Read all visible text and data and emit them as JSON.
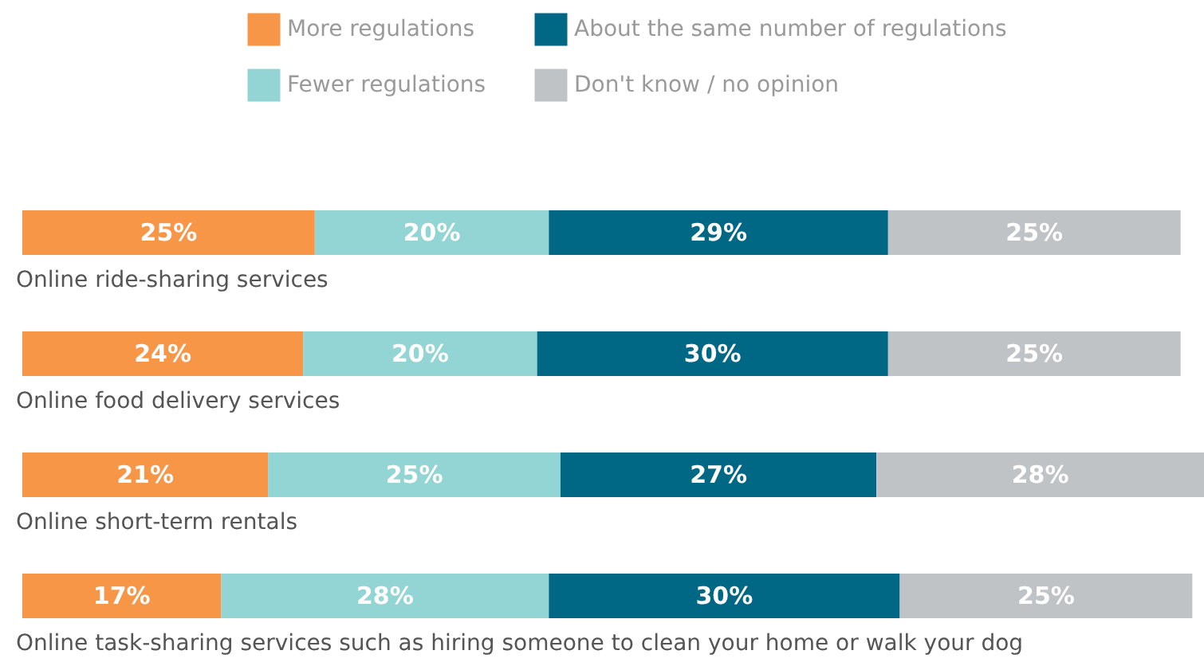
{
  "chart_data": {
    "type": "bar",
    "orientation": "horizontal",
    "stacked": true,
    "legend": "top",
    "categories": [
      "Online ride-sharing services",
      "Online food delivery services",
      "Online short-term rentals",
      "Online task-sharing services such as hiring someone to clean your home or walk your dog"
    ],
    "series": [
      {
        "name": "More regulations",
        "color": "#f79646",
        "values": [
          25,
          24,
          21,
          17
        ],
        "value_labels": [
          "25%",
          "24%",
          "21%",
          "17%"
        ]
      },
      {
        "name": "Fewer regulations",
        "color": "#93d4d4",
        "values": [
          20,
          20,
          25,
          28
        ],
        "value_labels": [
          "20%",
          "20%",
          "25%",
          "28%"
        ]
      },
      {
        "name": "About the same number of regulations",
        "color": "#006884",
        "values": [
          29,
          30,
          27,
          30
        ],
        "value_labels": [
          "29%",
          "30%",
          "27%",
          "30%"
        ]
      },
      {
        "name": "Don't know / no opinion",
        "color": "#bfc3c6",
        "values": [
          25,
          25,
          28,
          25
        ],
        "value_labels": [
          "25%",
          "25%",
          "28%",
          "25%"
        ]
      }
    ]
  }
}
